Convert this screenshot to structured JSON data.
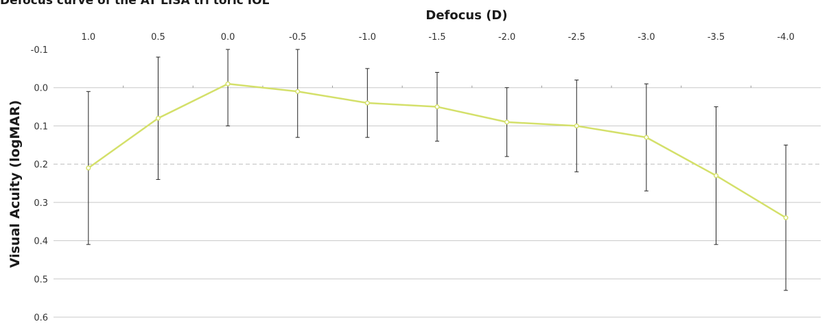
{
  "chart_data": {
    "type": "line",
    "title": "Defocus curve of the AT LISA tri toric IOL",
    "xlabel": "Defocus (D)",
    "ylabel": "Visual Acuity (logMAR)",
    "x_axis_position": "top",
    "y_axis_inverted": true,
    "categories": [
      "1.0",
      "0.5",
      "0.0",
      "-0.5",
      "-1.0",
      "-1.5",
      "-2.0",
      "-2.5",
      "-3.0",
      "-3.5",
      "-4.0"
    ],
    "y_ticks": [
      "-0.1",
      "0.0",
      "0.1",
      "0.2",
      "0.3",
      "0.4",
      "0.5",
      "0.6"
    ],
    "ylim": [
      -0.1,
      0.6
    ],
    "series": [
      {
        "values": [
          0.21,
          0.08,
          -0.01,
          0.01,
          0.04,
          0.05,
          0.09,
          0.1,
          0.13,
          0.23,
          0.34
        ],
        "error_low": [
          0.01,
          -0.08,
          -0.1,
          -0.1,
          -0.05,
          -0.04,
          0.0,
          -0.02,
          -0.01,
          0.05,
          0.15
        ],
        "error_high": [
          0.41,
          0.24,
          0.1,
          0.13,
          0.13,
          0.14,
          0.18,
          0.22,
          0.27,
          0.41,
          0.53
        ],
        "color": "#d4e06a"
      }
    ],
    "reference_line": {
      "y": 0.2,
      "style": "dashed",
      "color": "#bbbbbb"
    },
    "grid": true,
    "gridline_color": "#c8c8c8"
  }
}
